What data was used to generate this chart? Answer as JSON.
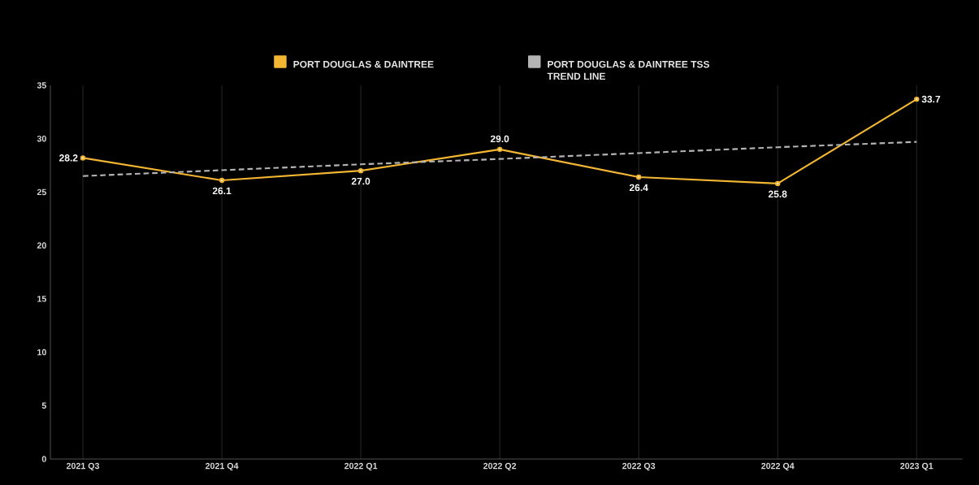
{
  "chart_data": {
    "type": "line",
    "categories": [
      "2021 Q3",
      "2021 Q4",
      "2022 Q1",
      "2022 Q2",
      "2022 Q3",
      "2022 Q4",
      "2023 Q1"
    ],
    "series": [
      {
        "name": "PORT DOUGLAS & DAINTREE",
        "color": "#f2b632",
        "values": [
          28.2,
          26.1,
          27.0,
          29.0,
          26.4,
          25.8,
          33.7
        ],
        "value_labels": [
          "28.2",
          "26.1",
          "27.0",
          "29.0",
          "26.4",
          "25.8",
          "33.7"
        ],
        "marker": "circle",
        "line_style": "solid"
      },
      {
        "name": "PORT DOUGLAS & DAINTREE TSS TREND LINE",
        "color": "#b4b4b4",
        "values": [
          26.5,
          27.05,
          27.6,
          28.1,
          28.65,
          29.2,
          29.7
        ],
        "marker": "none",
        "line_style": "dashed"
      }
    ],
    "ylim": [
      0,
      35
    ],
    "yticks": [
      0,
      5,
      10,
      15,
      20,
      25,
      30,
      35
    ],
    "grid": "x",
    "legend": "top"
  }
}
